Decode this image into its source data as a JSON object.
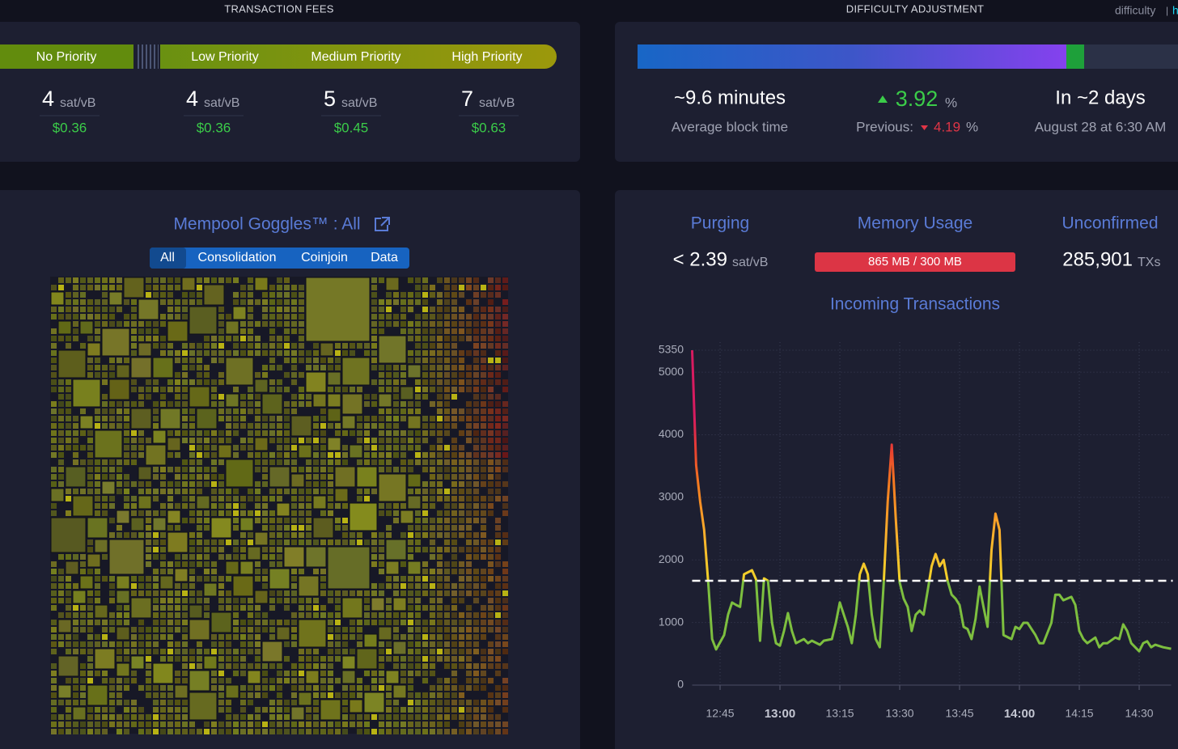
{
  "fees": {
    "heading": "TRANSACTION FEES",
    "priorities": [
      "No Priority",
      "Low Priority",
      "Medium Priority",
      "High Priority"
    ],
    "rates": [
      {
        "rate": 4,
        "unit": "sat/vB",
        "usd": "$0.36"
      },
      {
        "rate": 4,
        "unit": "sat/vB",
        "usd": "$0.36"
      },
      {
        "rate": 5,
        "unit": "sat/vB",
        "usd": "$0.45"
      },
      {
        "rate": 7,
        "unit": "sat/vB",
        "usd": "$0.63"
      }
    ]
  },
  "difficulty": {
    "heading": "DIFFICULTY ADJUSTMENT",
    "toggle": [
      "difficulty",
      "|",
      "h"
    ],
    "block_time": "~9.6 minutes",
    "block_time_label": "Average block time",
    "change": 3.92,
    "change_unit": "%",
    "previous_label": "Previous:",
    "previous": 4.19,
    "previous_unit": "%",
    "eta": "In ~2 days",
    "eta_date": "August 28 at 6:30 AM"
  },
  "goggles": {
    "title": "Mempool Goggles™ : All",
    "tabs": [
      "All",
      "Consolidation",
      "Coinjoin",
      "Data"
    ]
  },
  "mempool": {
    "purging_label": "Purging",
    "purging": "< 2.39",
    "purging_unit": "sat/vB",
    "memory_label": "Memory Usage",
    "memory": "865 MB / 300 MB",
    "unconfirmed_label": "Unconfirmed",
    "unconfirmed": "285,901",
    "unconfirmed_unit": "TXs"
  },
  "chart_data": {
    "type": "line",
    "title": "Incoming Transactions",
    "x": [
      "12:38",
      "12:39",
      "12:40",
      "12:41",
      "12:42",
      "12:43",
      "12:44",
      "12:46",
      "12:47",
      "12:48",
      "12:49",
      "12:50",
      "12:51",
      "12:53",
      "12:54",
      "12:55",
      "12:56",
      "12:57",
      "12:58",
      "12:59",
      "13:00",
      "13:01",
      "13:02",
      "13:03",
      "13:04",
      "13:06",
      "13:07",
      "13:08",
      "13:10",
      "13:11",
      "13:13",
      "13:14",
      "13:15",
      "13:17",
      "13:18",
      "13:19",
      "13:20",
      "13:21",
      "13:22",
      "13:23",
      "13:24",
      "13:25",
      "13:26",
      "13:27",
      "13:28",
      "13:29",
      "13:30",
      "13:31",
      "13:32",
      "13:33",
      "13:34",
      "13:35",
      "13:36",
      "13:37",
      "13:38",
      "13:39",
      "13:40",
      "13:41",
      "13:42",
      "13:43",
      "13:44",
      "13:45",
      "13:46",
      "13:47",
      "13:48",
      "13:49",
      "13:50",
      "13:51",
      "13:52",
      "13:53",
      "13:54",
      "13:55",
      "13:56",
      "13:58",
      "13:59",
      "14:00",
      "14:01",
      "14:02",
      "14:04",
      "14:05",
      "14:06",
      "14:08",
      "14:09",
      "14:10",
      "14:11",
      "14:13",
      "14:14",
      "14:15",
      "14:16",
      "14:17",
      "14:19",
      "14:20",
      "14:21",
      "14:22",
      "14:24",
      "14:25",
      "14:26",
      "14:27",
      "14:28",
      "14:30",
      "14:31",
      "14:32",
      "14:33",
      "14:34",
      "14:36",
      "14:38"
    ],
    "values": [
      5350,
      3515,
      2930,
      2480,
      1667,
      735,
      570,
      800,
      1125,
      1320,
      1280,
      1250,
      1770,
      1835,
      1690,
      710,
      1705,
      1667,
      995,
      670,
      630,
      865,
      1150,
      865,
      670,
      735,
      670,
      710,
      645,
      710,
      735,
      995,
      1320,
      930,
      670,
      1125,
      1770,
      1940,
      1770,
      1125,
      735,
      605,
      1640,
      2930,
      3840,
      2675,
      1640,
      1380,
      1250,
      865,
      1125,
      1190,
      1125,
      1510,
      1900,
      2095,
      1900,
      2000,
      1667,
      1445,
      1380,
      1280,
      930,
      895,
      735,
      1060,
      1575,
      1250,
      930,
      2160,
      2740,
      2480,
      800,
      735,
      930,
      895,
      995,
      995,
      800,
      670,
      670,
      995,
      1445,
      1445,
      1355,
      1410,
      1280,
      865,
      735,
      670,
      760,
      605,
      670,
      670,
      760,
      735,
      970,
      865,
      670,
      540,
      670,
      700,
      605,
      645,
      605,
      580
    ],
    "color": "#7dbf3f",
    "threshold": 1667,
    "xlim": [
      "12:38",
      "14:38"
    ],
    "xticks": [
      "12:45",
      "13:00",
      "13:15",
      "13:30",
      "13:45",
      "14:00",
      "14:15",
      "14:30"
    ],
    "ylim": [
      0,
      5350
    ],
    "yticks": [
      0,
      1000,
      2000,
      3000,
      4000,
      5000,
      5350
    ],
    "grid": true
  }
}
